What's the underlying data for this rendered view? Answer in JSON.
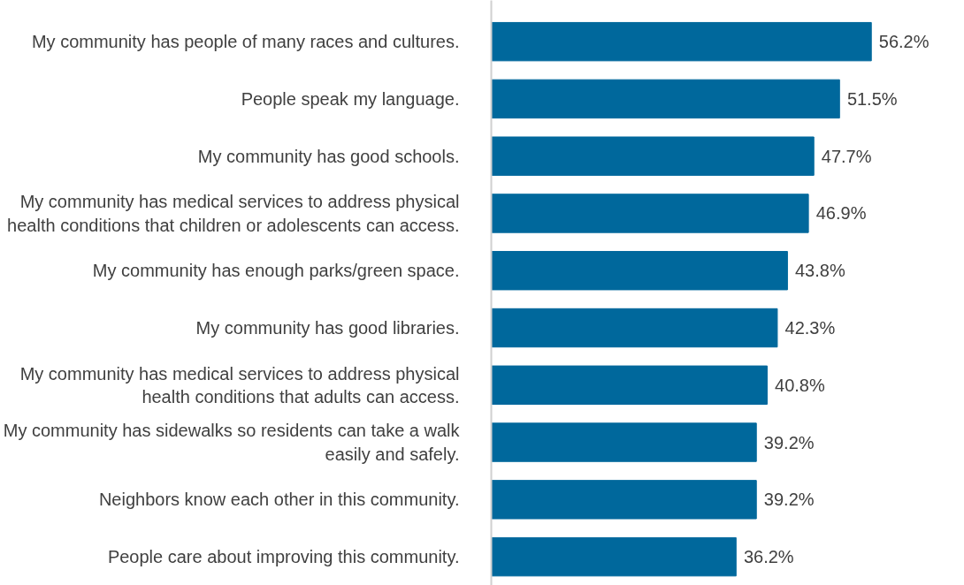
{
  "chart_data": {
    "type": "bar",
    "orientation": "horizontal",
    "value_labels": [
      "56.2%",
      "51.5%",
      "47.7%",
      "46.9%",
      "43.8%",
      "42.3%",
      "40.8%",
      "39.2%",
      "39.2%",
      "36.2%"
    ],
    "categories": [
      "My community has people of many races and cultures.",
      "People speak my language.",
      "My community has good schools.",
      "My community has medical services to address physical health conditions that children or adolescents can access.",
      "My community has enough parks/green space.",
      "My community has good libraries.",
      "My community has medical services to address physical health conditions that adults can access.",
      "My community has sidewalks so residents can take a walk easily and safely.",
      "Neighbors know each other in this community.",
      "People care about improving this community."
    ],
    "values": [
      56.2,
      51.5,
      47.7,
      46.9,
      43.8,
      42.3,
      40.8,
      39.2,
      39.2,
      36.2
    ],
    "color": "#00689c"
  }
}
